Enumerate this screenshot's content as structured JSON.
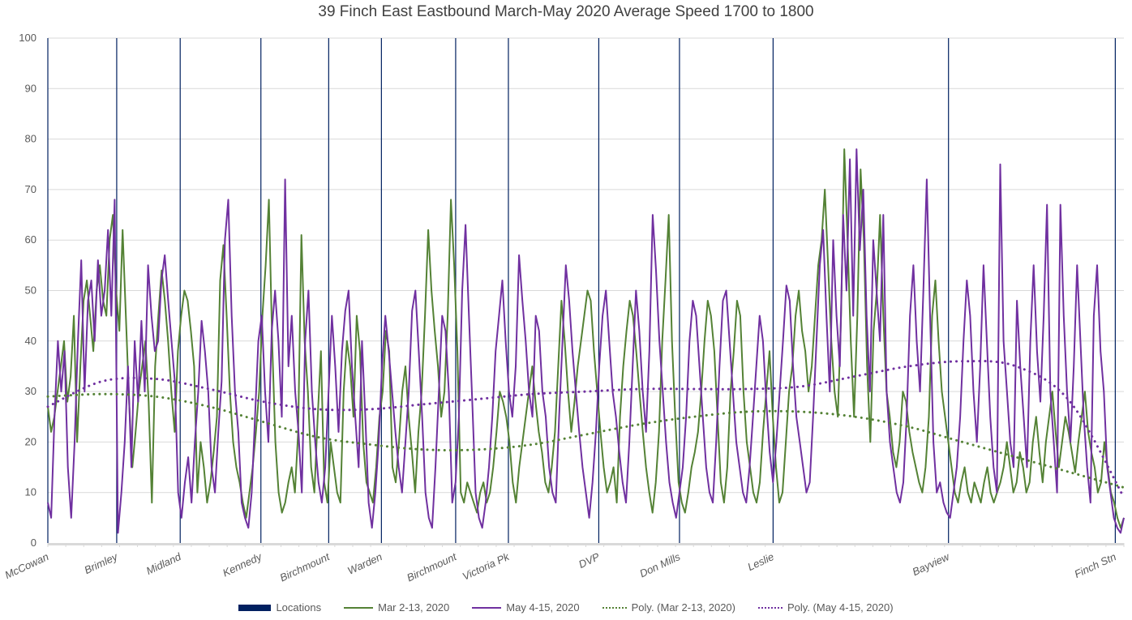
{
  "chart_data": {
    "type": "line",
    "title": "39 Finch East Eastbound March-May 2020 Average Speed 1700 to 1800",
    "xlabel": "",
    "ylabel": "",
    "ylim": [
      0,
      100
    ],
    "yticks": [
      0,
      10,
      20,
      30,
      40,
      50,
      60,
      70,
      80,
      90,
      100
    ],
    "grid": true,
    "legend_position": "bottom",
    "locations": [
      {
        "label": "McCowan",
        "pos": 0.0
      },
      {
        "label": "Brimley",
        "pos": 0.064
      },
      {
        "label": "Midland",
        "pos": 0.123
      },
      {
        "label": "Kennedy",
        "pos": 0.198
      },
      {
        "label": "Birchmount",
        "pos": 0.261
      },
      {
        "label": "Warden",
        "pos": 0.31
      },
      {
        "label": "Birchmount",
        "pos": 0.379
      },
      {
        "label": "Victoria Pk",
        "pos": 0.428
      },
      {
        "label": "DVP",
        "pos": 0.512
      },
      {
        "label": "Don Mills",
        "pos": 0.587
      },
      {
        "label": "Leslie",
        "pos": 0.674
      },
      {
        "label": "Bayview",
        "pos": 0.837
      },
      {
        "label": "Finch Stn",
        "pos": 0.992
      }
    ],
    "series": [
      {
        "name": "Mar 2-13, 2020",
        "color": "#548235",
        "style": "solid",
        "values": [
          27,
          22,
          25,
          30,
          35,
          40,
          28,
          33,
          45,
          20,
          35,
          48,
          52,
          45,
          38,
          50,
          55,
          48,
          45,
          60,
          65,
          50,
          42,
          62,
          45,
          28,
          15,
          22,
          30,
          35,
          40,
          28,
          8,
          35,
          45,
          54,
          48,
          40,
          30,
          22,
          38,
          45,
          50,
          48,
          42,
          35,
          10,
          20,
          15,
          8,
          12,
          18,
          25,
          52,
          59,
          45,
          30,
          20,
          15,
          12,
          8,
          5,
          10,
          15,
          22,
          30,
          45,
          55,
          68,
          40,
          20,
          10,
          6,
          8,
          12,
          15,
          10,
          22,
          61,
          40,
          30,
          15,
          10,
          25,
          38,
          12,
          8,
          20,
          15,
          10,
          8,
          30,
          40,
          35,
          25,
          45,
          38,
          20,
          12,
          10,
          8,
          15,
          25,
          30,
          42,
          38,
          15,
          12,
          20,
          30,
          35,
          25,
          18,
          10,
          22,
          30,
          45,
          62,
          50,
          42,
          35,
          25,
          30,
          45,
          68,
          55,
          38,
          10,
          8,
          12,
          10,
          8,
          6,
          10,
          12,
          8,
          10,
          15,
          22,
          30,
          28,
          25,
          20,
          12,
          8,
          15,
          20,
          25,
          30,
          35,
          28,
          22,
          18,
          12,
          10,
          15,
          22,
          35,
          48,
          40,
          30,
          22,
          28,
          35,
          40,
          45,
          50,
          48,
          38,
          30,
          22,
          15,
          10,
          12,
          15,
          8,
          25,
          35,
          42,
          48,
          45,
          38,
          30,
          22,
          15,
          10,
          6,
          12,
          22,
          40,
          52,
          65,
          40,
          25,
          12,
          8,
          6,
          10,
          15,
          18,
          22,
          30,
          40,
          48,
          45,
          38,
          25,
          12,
          8,
          15,
          30,
          38,
          48,
          45,
          30,
          20,
          15,
          10,
          8,
          12,
          22,
          30,
          38,
          25,
          15,
          8,
          10,
          20,
          30,
          35,
          45,
          50,
          42,
          38,
          30,
          35,
          45,
          55,
          60,
          70,
          55,
          40,
          30,
          25,
          45,
          78,
          60,
          40,
          25,
          45,
          74,
          60,
          35,
          20,
          42,
          50,
          65,
          45,
          30,
          25,
          18,
          15,
          20,
          30,
          28,
          22,
          18,
          15,
          12,
          10,
          15,
          25,
          45,
          52,
          40,
          30,
          25,
          20,
          15,
          10,
          8,
          12,
          15,
          10,
          8,
          12,
          10,
          8,
          12,
          15,
          10,
          8,
          10,
          12,
          15,
          20,
          15,
          10,
          12,
          18,
          15,
          10,
          12,
          20,
          25,
          18,
          12,
          20,
          25,
          30,
          22,
          15,
          20,
          25,
          22,
          18,
          14,
          20,
          25,
          30,
          22,
          18,
          15,
          10,
          12,
          20,
          15,
          10,
          8,
          5,
          3,
          5
        ],
        "note": "values approximate; dense noisy time series"
      },
      {
        "name": "May 4-15, 2020",
        "color": "#7030A0",
        "style": "solid",
        "values": [
          8,
          5,
          25,
          40,
          30,
          38,
          15,
          5,
          20,
          40,
          56,
          30,
          48,
          52,
          40,
          56,
          45,
          50,
          62,
          45,
          68,
          2,
          10,
          20,
          35,
          15,
          40,
          28,
          44,
          30,
          55,
          45,
          38,
          40,
          52,
          57,
          48,
          40,
          32,
          10,
          5,
          12,
          17,
          8,
          20,
          30,
          44,
          38,
          30,
          15,
          10,
          22,
          32,
          60,
          68,
          45,
          30,
          22,
          8,
          5,
          3,
          10,
          25,
          40,
          45,
          30,
          20,
          42,
          50,
          40,
          25,
          72,
          35,
          45,
          30,
          22,
          10,
          40,
          50,
          30,
          20,
          12,
          8,
          15,
          30,
          45,
          35,
          22,
          38,
          46,
          50,
          35,
          25,
          15,
          40,
          25,
          8,
          3,
          10,
          20,
          35,
          45,
          38,
          30,
          22,
          15,
          10,
          20,
          30,
          46,
          50,
          38,
          25,
          10,
          5,
          3,
          15,
          30,
          45,
          42,
          30,
          8,
          12,
          25,
          50,
          63,
          45,
          28,
          10,
          5,
          3,
          8,
          15,
          25,
          38,
          45,
          52,
          40,
          30,
          25,
          35,
          57,
          48,
          40,
          30,
          25,
          45,
          42,
          30,
          25,
          15,
          10,
          8,
          25,
          40,
          55,
          48,
          38,
          30,
          22,
          15,
          10,
          5,
          12,
          22,
          35,
          45,
          50,
          40,
          30,
          25,
          18,
          12,
          8,
          20,
          35,
          50,
          42,
          30,
          22,
          38,
          65,
          54,
          40,
          30,
          20,
          12,
          8,
          5,
          10,
          15,
          25,
          40,
          48,
          45,
          35,
          25,
          15,
          10,
          8,
          20,
          35,
          48,
          50,
          40,
          30,
          20,
          15,
          10,
          8,
          15,
          25,
          35,
          45,
          40,
          28,
          18,
          12,
          20,
          30,
          40,
          51,
          48,
          35,
          25,
          20,
          15,
          10,
          12,
          25,
          40,
          55,
          62,
          45,
          30,
          60,
          45,
          35,
          65,
          50,
          76,
          45,
          78,
          58,
          70,
          45,
          30,
          60,
          50,
          40,
          65,
          30,
          20,
          15,
          10,
          8,
          12,
          25,
          45,
          55,
          40,
          30,
          50,
          72,
          45,
          20,
          10,
          12,
          8,
          6,
          5,
          10,
          15,
          25,
          40,
          52,
          45,
          30,
          20,
          35,
          55,
          40,
          25,
          15,
          10,
          75,
          40,
          30,
          20,
          15,
          48,
          35,
          25,
          15,
          40,
          55,
          38,
          28,
          45,
          67,
          30,
          20,
          10,
          67,
          45,
          30,
          20,
          35,
          55,
          40,
          25,
          15,
          8,
          45,
          55,
          38,
          30,
          15,
          10,
          5,
          3,
          2,
          5
        ],
        "note": "values approximate; dense noisy time series"
      },
      {
        "name": "Poly. (Mar 2-13, 2020)",
        "color": "#548235",
        "style": "dotted",
        "x_frac": [
          0.0,
          0.05,
          0.1,
          0.15,
          0.2,
          0.25,
          0.3,
          0.35,
          0.4,
          0.45,
          0.5,
          0.55,
          0.6,
          0.65,
          0.7,
          0.75,
          0.8,
          0.85,
          0.9,
          0.95,
          1.0
        ],
        "values": [
          29,
          29.5,
          29,
          27,
          24,
          21,
          19.5,
          18.5,
          18.5,
          19.5,
          21.5,
          23.5,
          25,
          26,
          26,
          25,
          23,
          20,
          17,
          14,
          11
        ]
      },
      {
        "name": "Poly. (May 4-15, 2020)",
        "color": "#7030A0",
        "style": "dotted",
        "x_frac": [
          0.0,
          0.05,
          0.1,
          0.15,
          0.2,
          0.25,
          0.3,
          0.35,
          0.4,
          0.45,
          0.5,
          0.55,
          0.6,
          0.65,
          0.7,
          0.75,
          0.8,
          0.85,
          0.9,
          0.95,
          1.0
        ],
        "values": [
          27,
          32,
          32.5,
          30.5,
          28,
          26.5,
          26.5,
          27.5,
          28.5,
          29.5,
          30,
          30.5,
          30.5,
          30.5,
          31,
          33,
          35,
          36,
          35,
          28,
          9
        ]
      }
    ]
  },
  "legend": {
    "items": [
      {
        "label": "Locations",
        "color": "#002060",
        "kind": "bar"
      },
      {
        "label": "Mar 2-13, 2020",
        "color": "#548235",
        "kind": "line"
      },
      {
        "label": "May 4-15, 2020",
        "color": "#7030A0",
        "kind": "line"
      },
      {
        "label": "Poly. (Mar 2-13, 2020)",
        "color": "#548235",
        "kind": "dotted"
      },
      {
        "label": "Poly. (May 4-15, 2020)",
        "color": "#7030A0",
        "kind": "dotted"
      }
    ]
  },
  "colors": {
    "gridline": "#d9d9d9",
    "location_line": "#002060",
    "axis": "#d9d9d9"
  }
}
